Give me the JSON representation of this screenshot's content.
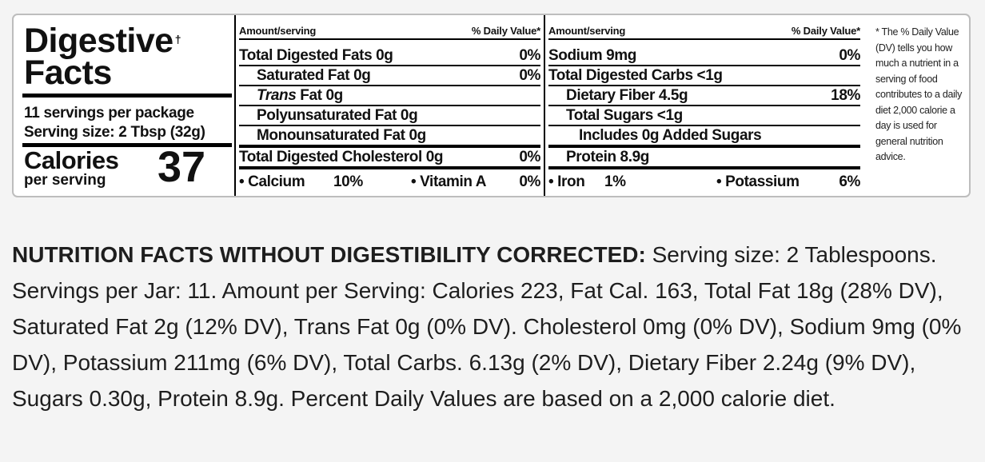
{
  "label": {
    "title_line1": "Digestive",
    "title_line2": "Facts",
    "title_mark": "†",
    "servings_per_package": "11 servings per package",
    "serving_size": "Serving size: 2 Tbsp (32g)",
    "calories_label": "Calories",
    "calories_sub": "per serving",
    "calories_value": "37",
    "col_a": {
      "header_left": "Amount/serving",
      "header_right": "% Daily Value*",
      "rows": [
        {
          "text": "Total Digested Fats 0g",
          "value": "0%"
        },
        {
          "text": "Saturated Fat 0g",
          "value": "0%"
        },
        {
          "text_em": "Trans",
          "text_rest": " Fat 0g",
          "value": ""
        },
        {
          "text": "Polyunsaturated Fat 0g",
          "value": ""
        },
        {
          "text": "Monounsaturated Fat 0g",
          "value": ""
        },
        {
          "text": "Total Digested Cholesterol 0g",
          "value": "0%"
        }
      ],
      "minerals": [
        {
          "text": "• Calcium",
          "value": "10%"
        },
        {
          "text": "• Vitamin A",
          "value": "0%"
        }
      ]
    },
    "col_b": {
      "header_left": "Amount/serving",
      "header_right": "% Daily Value*",
      "rows": [
        {
          "text": "Sodium 9mg",
          "value": "0%"
        },
        {
          "text": "Total Digested Carbs <1g",
          "value": ""
        },
        {
          "text": "Dietary Fiber 4.5g",
          "value": "18%"
        },
        {
          "text": "Total Sugars <1g",
          "value": ""
        },
        {
          "text": "Includes 0g Added Sugars",
          "value": ""
        },
        {
          "text": "Protein 8.9g",
          "value": ""
        }
      ],
      "minerals": [
        {
          "text": "• Iron",
          "value": "1%"
        },
        {
          "text": "• Potassium",
          "value": "6%"
        }
      ]
    },
    "footnote": "* The % Daily Value (DV) tells you how much a nutrient in a serving of food contributes to a daily diet 2,000 calorie a day is used for general nutrition advice."
  },
  "paragraph": {
    "heading": "NUTRITION FACTS WITHOUT DIGESTIBILITY CORRECTED:",
    "body": " Serving size: 2 Tablespoons. Servings per Jar: 11. Amount per Serving: Calories 223, Fat Cal. 163, Total Fat 18g (28% DV), Saturated Fat 2g (12% DV), Trans Fat 0g (0% DV). Cholesterol 0mg (0% DV), Sodium 9mg (0% DV), Potassium 211mg (6% DV), Total Carbs. 6.13g (2% DV), Dietary Fiber 2.24g (9% DV), Sugars 0.30g, Protein 8.9g. Percent Daily Values are based on a 2,000 calorie diet."
  }
}
